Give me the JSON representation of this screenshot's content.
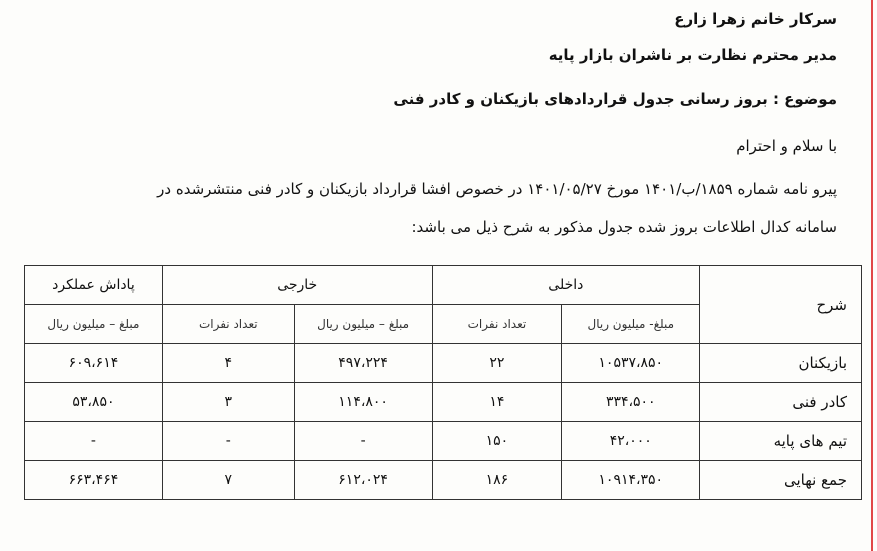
{
  "letter": {
    "recipient": "سرکار خانم زهرا زارع",
    "position": "مدیر محترم نظارت بر ناشران بازار پایه",
    "subject": "موضوع : بروز رسانی جدول قراردادهای بازیکنان و کادر فنی",
    "greeting": "با سلام و احترام",
    "body_line1": "پیرو نامه  شماره ۱۸۵۹/ب/۱۴۰۱ مورخ ۱۴۰۱/۰۵/۲۷ در خصوص افشا قرارداد بازیکنان و کادر فنی منتشرشده در",
    "body_line2": "سامانه کدال اطلاعات بروز شده جدول مذکور به شرح ذیل می باشد:"
  },
  "table": {
    "header": {
      "desc": "شرح",
      "domestic": "داخلی",
      "foreign": "خارجی",
      "bonus": "پاداش عملکرد"
    },
    "subheader": {
      "d_amount": "مبلغ- میلیون ریال",
      "d_count": "تعداد نفرات",
      "f_amount": "مبلغ – میلیون ریال",
      "f_count": "تعداد نفرات",
      "b_amount": "مبلغ – میلیون ریال"
    },
    "rows": [
      {
        "desc": "بازیکنان",
        "d_amount": "۱۰۵۳۷،۸۵۰",
        "d_count": "۲۲",
        "f_amount": "۴۹۷،۲۲۴",
        "f_count": "۴",
        "b_amount": "۶۰۹،۶۱۴"
      },
      {
        "desc": "کادر فنی",
        "d_amount": "۳۳۴،۵۰۰",
        "d_count": "۱۴",
        "f_amount": "۱۱۴،۸۰۰",
        "f_count": "۳",
        "b_amount": "۵۳،۸۵۰"
      },
      {
        "desc": "تیم های پایه",
        "d_amount": "۴۲،۰۰۰",
        "d_count": "۱۵۰",
        "f_amount": "-",
        "f_count": "-",
        "b_amount": "-"
      },
      {
        "desc": "جمع نهایی",
        "d_amount": "۱۰۹۱۴،۳۵۰",
        "d_count": "۱۸۶",
        "f_amount": "۶۱۲،۰۲۴",
        "f_count": "۷",
        "b_amount": "۶۶۳،۴۶۴"
      }
    ]
  }
}
